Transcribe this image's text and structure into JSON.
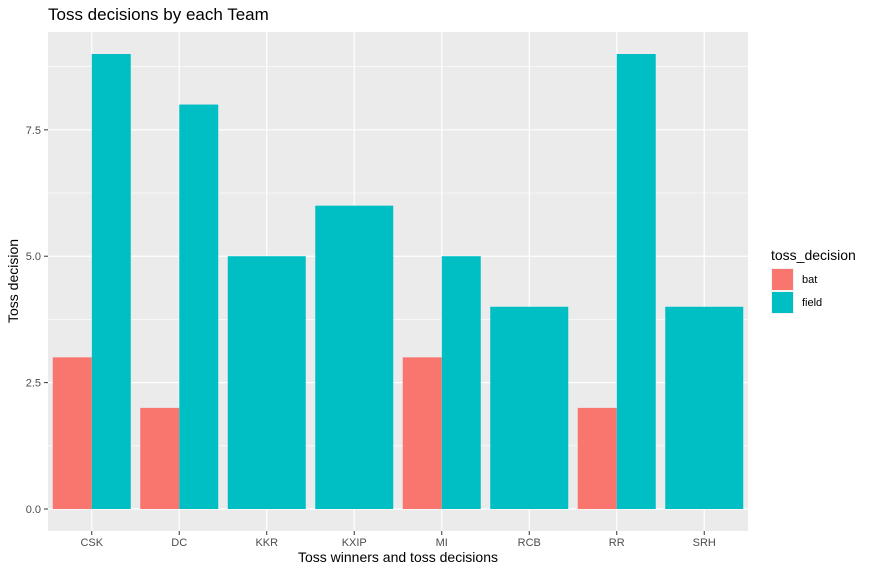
{
  "chart_data": {
    "type": "bar",
    "title": "Toss decisions by each Team",
    "xlabel": "Toss winners and toss decisions",
    "ylabel": "Toss decision",
    "categories": [
      "CSK",
      "DC",
      "KKR",
      "KXIP",
      "MI",
      "RCB",
      "RR",
      "SRH"
    ],
    "series": [
      {
        "name": "bat",
        "color": "#F8766D",
        "values": [
          3,
          2,
          null,
          null,
          3,
          null,
          2,
          null
        ]
      },
      {
        "name": "field",
        "color": "#00BFC4",
        "values": [
          9,
          8,
          5,
          6,
          5,
          4,
          9,
          4
        ]
      }
    ],
    "ylim": [
      0,
      9
    ],
    "yticks": [
      0,
      2.5,
      5,
      7.5
    ],
    "ytick_labels": [
      "0.0",
      "2.5",
      "5.0",
      "7.5"
    ],
    "grid": true,
    "legend": {
      "title": "toss_decision",
      "position": "right"
    },
    "panel_color": "#EBEBEB",
    "gridline_color": "#FFFFFF"
  }
}
